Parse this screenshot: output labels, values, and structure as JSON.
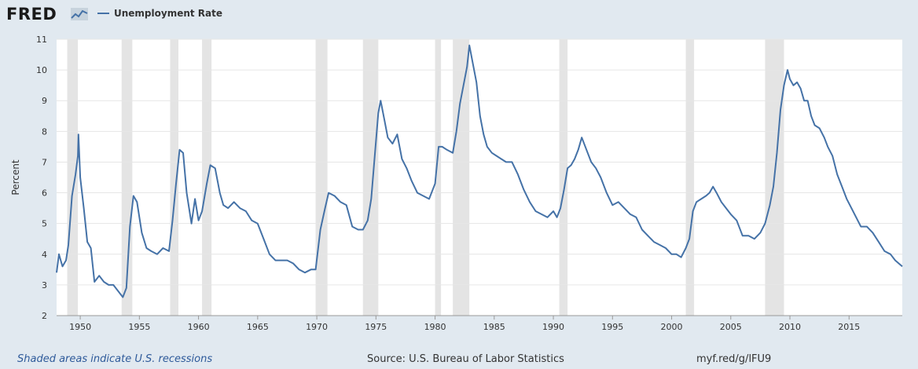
{
  "header": {
    "logo": "FRED",
    "legend_label": "Unemployment Rate"
  },
  "footer": {
    "note": "Shaded areas indicate U.S. recessions",
    "source": "Source: U.S. Bureau of Labor Statistics",
    "link": "myf.red/g/lFU9"
  },
  "colors": {
    "series": "#4572a7",
    "recession": "#e4e4e4",
    "background": "#e1e9f0"
  },
  "chart_data": {
    "type": "line",
    "title": "",
    "xlabel": "",
    "ylabel": "Percent",
    "xlim": [
      1948.0,
      2019.5
    ],
    "ylim": [
      2,
      11
    ],
    "yticks": [
      2,
      3,
      4,
      5,
      6,
      7,
      8,
      9,
      10,
      11
    ],
    "xticks": [
      1950,
      1955,
      1960,
      1965,
      1970,
      1975,
      1980,
      1985,
      1990,
      1995,
      2000,
      2005,
      2010,
      2015
    ],
    "grid": true,
    "legend_position": "top-left",
    "recessions": [
      [
        1948.9,
        1949.8
      ],
      [
        1953.5,
        1954.4
      ],
      [
        1957.6,
        1958.3
      ],
      [
        1960.3,
        1961.1
      ],
      [
        1969.9,
        1970.9
      ],
      [
        1973.9,
        1975.2
      ],
      [
        1980.0,
        1980.5
      ],
      [
        1981.5,
        1982.9
      ],
      [
        1990.5,
        1991.2
      ],
      [
        2001.2,
        2001.9
      ],
      [
        2007.9,
        2009.5
      ]
    ],
    "series": [
      {
        "name": "Unemployment Rate",
        "x": [
          1948.0,
          1948.2,
          1948.5,
          1948.8,
          1949.0,
          1949.3,
          1949.6,
          1949.8,
          1949.85,
          1950.0,
          1950.3,
          1950.6,
          1950.9,
          1951.2,
          1951.6,
          1952.0,
          1952.4,
          1952.8,
          1953.2,
          1953.6,
          1953.9,
          1954.2,
          1954.5,
          1954.8,
          1955.2,
          1955.6,
          1956.0,
          1956.5,
          1957.0,
          1957.5,
          1957.8,
          1958.1,
          1958.4,
          1958.7,
          1959.0,
          1959.4,
          1959.7,
          1960.0,
          1960.3,
          1960.7,
          1961.0,
          1961.4,
          1961.8,
          1962.1,
          1962.5,
          1963.0,
          1963.5,
          1964.0,
          1964.5,
          1965.0,
          1965.5,
          1966.0,
          1966.5,
          1967.0,
          1967.5,
          1968.0,
          1968.5,
          1969.0,
          1969.5,
          1969.9,
          1970.3,
          1970.7,
          1971.0,
          1971.5,
          1972.0,
          1972.5,
          1973.0,
          1973.5,
          1973.9,
          1974.3,
          1974.6,
          1974.9,
          1975.2,
          1975.4,
          1975.7,
          1976.0,
          1976.4,
          1976.8,
          1977.2,
          1977.6,
          1978.0,
          1978.5,
          1979.0,
          1979.5,
          1980.0,
          1980.3,
          1980.6,
          1981.0,
          1981.5,
          1981.8,
          1982.1,
          1982.4,
          1982.7,
          1982.9,
          1983.2,
          1983.5,
          1983.8,
          1984.1,
          1984.4,
          1984.8,
          1985.2,
          1985.6,
          1986.0,
          1986.5,
          1987.0,
          1987.5,
          1988.0,
          1988.5,
          1989.0,
          1989.5,
          1990.0,
          1990.3,
          1990.6,
          1990.9,
          1991.2,
          1991.5,
          1991.8,
          1992.1,
          1992.4,
          1992.8,
          1993.2,
          1993.6,
          1994.0,
          1994.5,
          1995.0,
          1995.5,
          1996.0,
          1996.5,
          1997.0,
          1997.5,
          1998.0,
          1998.5,
          1999.0,
          1999.5,
          2000.0,
          2000.4,
          2000.8,
          2001.2,
          2001.5,
          2001.8,
          2002.1,
          2002.5,
          2002.9,
          2003.2,
          2003.5,
          2003.8,
          2004.2,
          2004.6,
          2005.0,
          2005.5,
          2006.0,
          2006.5,
          2007.0,
          2007.5,
          2007.9,
          2008.3,
          2008.6,
          2008.9,
          2009.2,
          2009.5,
          2009.8,
          2010.0,
          2010.3,
          2010.6,
          2010.9,
          2011.2,
          2011.5,
          2011.8,
          2012.1,
          2012.5,
          2012.9,
          2013.2,
          2013.6,
          2014.0,
          2014.4,
          2014.8,
          2015.2,
          2015.6,
          2016.0,
          2016.5,
          2017.0,
          2017.5,
          2018.0,
          2018.5,
          2018.9,
          2019.2,
          2019.5
        ],
        "values": [
          3.4,
          4.0,
          3.6,
          3.8,
          4.3,
          5.9,
          6.6,
          7.2,
          7.9,
          6.5,
          5.5,
          4.4,
          4.2,
          3.1,
          3.3,
          3.1,
          3.0,
          3.0,
          2.8,
          2.6,
          2.9,
          4.9,
          5.9,
          5.7,
          4.7,
          4.2,
          4.1,
          4.0,
          4.2,
          4.1,
          5.1,
          6.3,
          7.4,
          7.3,
          6.0,
          5.0,
          5.8,
          5.1,
          5.4,
          6.3,
          6.9,
          6.8,
          6.0,
          5.6,
          5.5,
          5.7,
          5.5,
          5.4,
          5.1,
          5.0,
          4.5,
          4.0,
          3.8,
          3.8,
          3.8,
          3.7,
          3.5,
          3.4,
          3.5,
          3.5,
          4.8,
          5.5,
          6.0,
          5.9,
          5.7,
          5.6,
          4.9,
          4.8,
          4.8,
          5.1,
          5.8,
          7.2,
          8.6,
          9.0,
          8.4,
          7.8,
          7.6,
          7.9,
          7.1,
          6.8,
          6.4,
          6.0,
          5.9,
          5.8,
          6.3,
          7.5,
          7.5,
          7.4,
          7.3,
          8.0,
          8.9,
          9.5,
          10.1,
          10.8,
          10.2,
          9.6,
          8.5,
          7.9,
          7.5,
          7.3,
          7.2,
          7.1,
          7.0,
          7.0,
          6.6,
          6.1,
          5.7,
          5.4,
          5.3,
          5.2,
          5.4,
          5.2,
          5.5,
          6.1,
          6.8,
          6.9,
          7.1,
          7.4,
          7.8,
          7.4,
          7.0,
          6.8,
          6.5,
          6.0,
          5.6,
          5.7,
          5.5,
          5.3,
          5.2,
          4.8,
          4.6,
          4.4,
          4.3,
          4.2,
          4.0,
          4.0,
          3.9,
          4.2,
          4.5,
          5.4,
          5.7,
          5.8,
          5.9,
          6.0,
          6.2,
          6.0,
          5.7,
          5.5,
          5.3,
          5.1,
          4.6,
          4.6,
          4.5,
          4.7,
          5.0,
          5.6,
          6.2,
          7.3,
          8.7,
          9.5,
          10.0,
          9.7,
          9.5,
          9.6,
          9.4,
          9.0,
          9.0,
          8.5,
          8.2,
          8.1,
          7.8,
          7.5,
          7.2,
          6.6,
          6.2,
          5.8,
          5.5,
          5.2,
          4.9,
          4.9,
          4.7,
          4.4,
          4.1,
          4.0,
          3.8,
          3.7,
          3.6
        ]
      }
    ]
  }
}
